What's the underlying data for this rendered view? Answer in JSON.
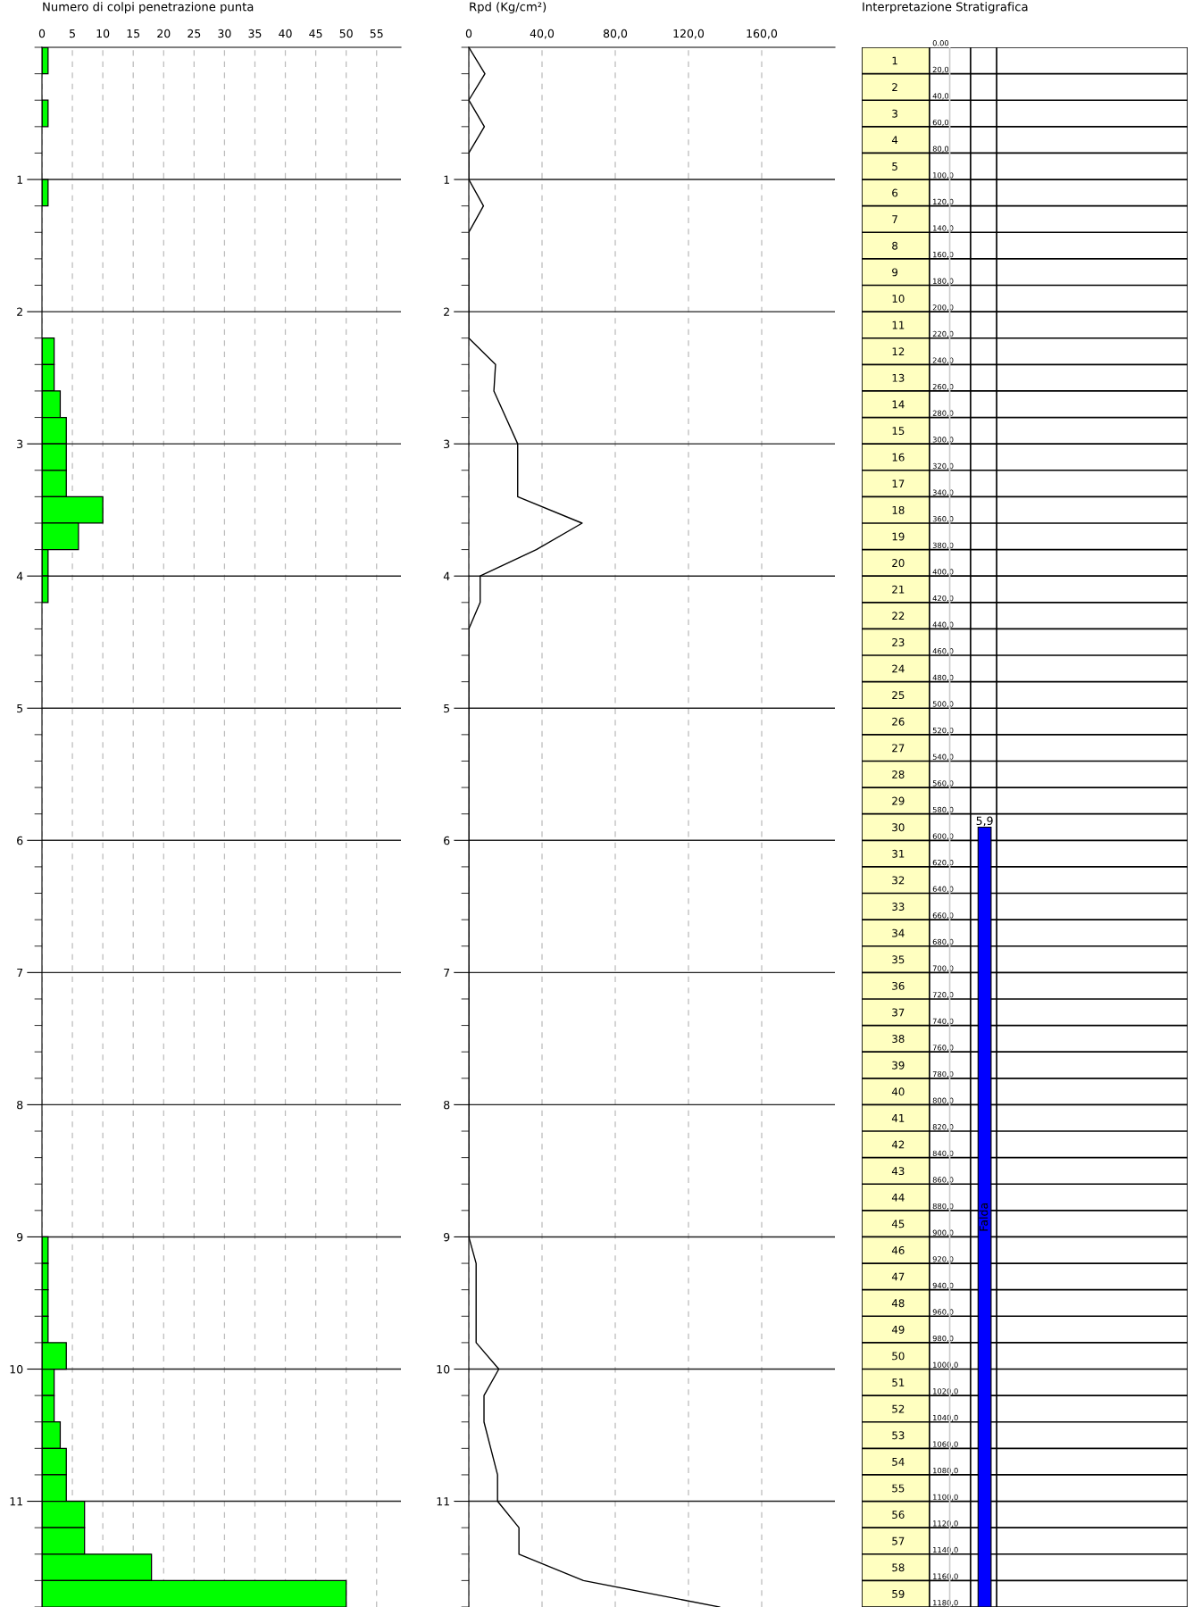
{
  "chart_data": [
    {
      "type": "histogram",
      "orientation": "horizontal",
      "title": "Numero di colpi penetrazione punta",
      "color": "#00ff00",
      "bins": [
        0,
        0.2,
        0.4,
        0.6,
        0.8,
        1.0,
        1.2,
        1.4,
        1.6,
        1.8,
        2.0,
        2.2,
        2.4,
        2.6,
        2.8,
        3.0,
        3.2,
        3.4,
        3.6,
        3.8,
        4.0,
        4.2,
        4.4,
        4.6,
        4.8,
        5.0,
        5.2,
        5.4,
        5.6,
        5.8,
        6.0,
        6.2,
        6.4,
        6.6,
        6.8,
        7.0,
        7.2,
        7.4,
        7.6,
        7.8,
        8.0,
        8.2,
        8.4,
        8.6,
        8.8,
        9.0,
        9.2,
        9.4,
        9.6,
        9.8,
        10.0,
        10.2,
        10.4,
        10.6,
        10.8,
        11.0,
        11.2,
        11.4,
        11.6,
        11.8
      ],
      "values": [
        1,
        0,
        1,
        0,
        0,
        1,
        0,
        0,
        0,
        0,
        0,
        2,
        2,
        3,
        4,
        4,
        4,
        10,
        6,
        1,
        1,
        0,
        0,
        0,
        0,
        0,
        0,
        0,
        0,
        0,
        0,
        0,
        0,
        0,
        0,
        0,
        0,
        0,
        0,
        0,
        0,
        0,
        0,
        0,
        0,
        1,
        1,
        1,
        1,
        4,
        2,
        2,
        3,
        4,
        4,
        7,
        7,
        18,
        50
      ],
      "xlim": [
        0,
        59
      ],
      "xticks": [
        0,
        5,
        10,
        15,
        20,
        25,
        30,
        35,
        40,
        45,
        50,
        55
      ],
      "ylim": [
        11.8,
        0
      ],
      "yticks": [
        1,
        2,
        3,
        4,
        5,
        6,
        7,
        8,
        9,
        10,
        11
      ],
      "grid": true
    },
    {
      "type": "line",
      "title": "Rpd (Kg/cm²)",
      "color": "#000000",
      "x": [
        0,
        8.8,
        0,
        8.5,
        0,
        0,
        8.0,
        0,
        0,
        0,
        0,
        0,
        14.6,
        13.7,
        20.2,
        26.7,
        26.7,
        26.7,
        61.9,
        36.9,
        6.2,
        6.2,
        0,
        0,
        0,
        0,
        0,
        0,
        0,
        0,
        0,
        0,
        0,
        0,
        0,
        0,
        0,
        0,
        0,
        0,
        0,
        0,
        0,
        0,
        0,
        0,
        4.0,
        4.0,
        4.0,
        4.0,
        16.4,
        8.3,
        8.3,
        12.0,
        15.7,
        15.7,
        27.4,
        27.4,
        62.6,
        137
      ],
      "values": [
        0,
        0.2,
        0.4,
        0.6,
        0.8,
        1.0,
        1.2,
        1.4,
        1.6,
        1.8,
        2.0,
        2.2,
        2.4,
        2.6,
        2.8,
        3.0,
        3.2,
        3.4,
        3.6,
        3.8,
        4.0,
        4.2,
        4.4,
        4.6,
        4.8,
        5.0,
        5.2,
        5.4,
        5.6,
        5.8,
        6.0,
        6.2,
        6.4,
        6.6,
        6.8,
        7.0,
        7.2,
        7.4,
        7.6,
        7.8,
        8.0,
        8.2,
        8.4,
        8.6,
        8.8,
        9.0,
        9.2,
        9.4,
        9.6,
        9.8,
        10.0,
        10.2,
        10.4,
        10.6,
        10.8,
        11.0,
        11.2,
        11.4,
        11.6,
        11.8
      ],
      "xlim": [
        0,
        200
      ],
      "xticks": [
        0,
        {
          "value": 40,
          "label": "40,0"
        },
        {
          "value": 80,
          "label": "80,0"
        },
        {
          "value": 120,
          "label": "120,0"
        },
        {
          "value": 160,
          "label": "160,0"
        }
      ],
      "ylim": [
        11.8,
        0
      ],
      "yticks": [
        1,
        2,
        3,
        4,
        5,
        6,
        7,
        8,
        9,
        10,
        11
      ],
      "grid": true,
      "marker": "none",
      "line_style": "solid"
    },
    {
      "type": "bar",
      "title": "Interpretazione Stratigrafica",
      "categories": [
        null
      ],
      "color": "#0000ff",
      "base": [
        590
      ],
      "values": [
        590
      ],
      "annotations": [
        "5,9",
        "Falda"
      ],
      "bands": [
        {
          "axis": "y",
          "from": 0,
          "to": 1180,
          "color": "#ffffc0"
        }
      ],
      "ylim": [
        1180,
        0
      ],
      "yticks": [
        {
          "value": 0,
          "label": "0.00"
        },
        {
          "value": 20,
          "label": "20,0"
        },
        {
          "value": 40,
          "label": "40,0"
        },
        {
          "value": 60,
          "label": "60,0"
        },
        {
          "value": 80,
          "label": "80,0"
        },
        {
          "value": 100,
          "label": "100,0"
        },
        {
          "value": 120,
          "label": "120,0"
        },
        {
          "value": 140,
          "label": "140,0"
        },
        {
          "value": 160,
          "label": "160,0"
        },
        {
          "value": 180,
          "label": "180,0"
        },
        {
          "value": 200,
          "label": "200,0"
        },
        {
          "value": 220,
          "label": "220,0"
        },
        {
          "value": 240,
          "label": "240,0"
        },
        {
          "value": 260,
          "label": "260,0"
        },
        {
          "value": 280,
          "label": "280,0"
        },
        {
          "value": 300,
          "label": "300,0"
        },
        {
          "value": 320,
          "label": "320,0"
        },
        {
          "value": 340,
          "label": "340,0"
        },
        {
          "value": 360,
          "label": "360,0"
        },
        {
          "value": 380,
          "label": "380,0"
        },
        {
          "value": 400,
          "label": "400,0"
        },
        {
          "value": 420,
          "label": "420,0"
        },
        {
          "value": 440,
          "label": "440,0"
        },
        {
          "value": 460,
          "label": "460,0"
        },
        {
          "value": 480,
          "label": "480,0"
        },
        {
          "value": 500,
          "label": "500,0"
        },
        {
          "value": 520,
          "label": "520,0"
        },
        {
          "value": 540,
          "label": "540,0"
        },
        {
          "value": 560,
          "label": "560,0"
        },
        {
          "value": 580,
          "label": "580,0"
        },
        {
          "value": 600,
          "label": "600,0"
        },
        {
          "value": 620,
          "label": "620,0"
        },
        {
          "value": 640,
          "label": "640,0"
        },
        {
          "value": 660,
          "label": "660,0"
        },
        {
          "value": 680,
          "label": "680,0"
        },
        {
          "value": 700,
          "label": "700,0"
        },
        {
          "value": 720,
          "label": "720,0"
        },
        {
          "value": 740,
          "label": "740,0"
        },
        {
          "value": 760,
          "label": "760,0"
        },
        {
          "value": 780,
          "label": "780,0"
        },
        {
          "value": 800,
          "label": "800,0"
        },
        {
          "value": 820,
          "label": "820,0"
        },
        {
          "value": 840,
          "label": "840,0"
        },
        {
          "value": 860,
          "label": "860,0"
        },
        {
          "value": 880,
          "label": "880,0"
        },
        {
          "value": 900,
          "label": "900,0"
        },
        {
          "value": 920,
          "label": "920,0"
        },
        {
          "value": 940,
          "label": "940,0"
        },
        {
          "value": 960,
          "label": "960,0"
        },
        {
          "value": 980,
          "label": "980,0"
        },
        {
          "value": 1000,
          "label": "1000,0"
        },
        {
          "value": 1020,
          "label": "1020,0"
        },
        {
          "value": 1040,
          "label": "1040,0"
        },
        {
          "value": 1060,
          "label": "1060,0"
        },
        {
          "value": 1080,
          "label": "1080,0"
        },
        {
          "value": 1100,
          "label": "1100,0"
        },
        {
          "value": 1120,
          "label": "1120,0"
        },
        {
          "value": 1140,
          "label": "1140,0"
        },
        {
          "value": 1160,
          "label": "1160,0"
        },
        {
          "value": 1180,
          "label": "1180,0"
        }
      ],
      "y2lim": [
        59.5,
        0.5
      ],
      "y2ticks": [
        1,
        2,
        3,
        4,
        5,
        6,
        7,
        8,
        9,
        10,
        11,
        12,
        13,
        14,
        15,
        16,
        17,
        18,
        19,
        20,
        21,
        22,
        23,
        24,
        25,
        26,
        27,
        28,
        29,
        30,
        31,
        32,
        33,
        34,
        35,
        36,
        37,
        38,
        39,
        40,
        41,
        42,
        43,
        44,
        45,
        46,
        47,
        48,
        49,
        50,
        51,
        52,
        53,
        54,
        55,
        56,
        57,
        58,
        59
      ],
      "grid": "y"
    }
  ]
}
